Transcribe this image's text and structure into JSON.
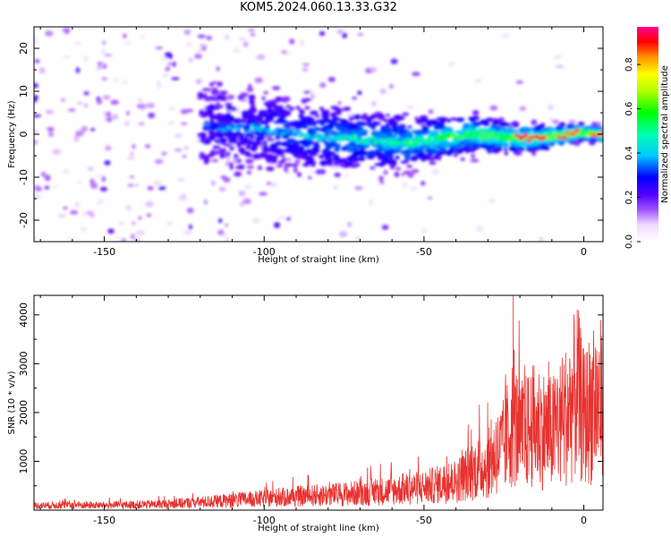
{
  "title": "KOM5.2024.060.13.33.G32",
  "colors": {
    "snr_line": "#e8322f",
    "axis": "#000000"
  },
  "chart_data": [
    {
      "type": "heatmap",
      "title": "KOM5.2024.060.13.33.G32",
      "xlabel": "Height of straight line (km)",
      "ylabel": "Frequency (Hz)",
      "xlim": [
        -172,
        6
      ],
      "ylim": [
        -25,
        25
      ],
      "xticks": [
        -150,
        -100,
        -50,
        0
      ],
      "yticks": [
        -20,
        -10,
        0,
        10,
        20
      ],
      "colorbar": {
        "label": "Normalized spectral amplitude",
        "range": [
          0,
          0.97
        ],
        "ticks": [
          0.0,
          0.2,
          0.4,
          0.6,
          0.8
        ],
        "colormap": "hsv-rainbow-white-low"
      },
      "ridge": {
        "description_points": [
          [
            -118,
            2
          ],
          [
            -100,
            1
          ],
          [
            -75,
            -1
          ],
          [
            -55,
            -2
          ],
          [
            -35,
            0
          ],
          [
            -20,
            -1
          ],
          [
            -10,
            -0.5
          ],
          [
            0,
            0.5
          ],
          [
            5,
            0
          ]
        ],
        "peak_amplitude": 0.95
      }
    },
    {
      "type": "line",
      "xlabel": "Height of straight line (km)",
      "ylabel": "SNR (10 * v/v)",
      "xlim": [
        -172,
        6
      ],
      "ylim": [
        0,
        4400
      ],
      "xticks": [
        -150,
        -100,
        -50,
        0
      ],
      "yticks": [
        1000,
        2000,
        3000,
        4000
      ],
      "series": [
        {
          "x": [
            -172,
            -160,
            -150,
            -140,
            -130,
            -120,
            -110,
            -100,
            -90,
            -80,
            -70,
            -60,
            -50,
            -40,
            -35,
            -30,
            -25,
            -22,
            -20,
            -15,
            -10,
            -5,
            -2,
            0,
            3,
            6
          ],
          "y": [
            150,
            170,
            160,
            180,
            200,
            260,
            320,
            380,
            450,
            500,
            560,
            650,
            750,
            950,
            1300,
            1500,
            2100,
            3000,
            2400,
            2800,
            2500,
            3200,
            3900,
            3000,
            3500,
            3600
          ]
        }
      ]
    }
  ]
}
